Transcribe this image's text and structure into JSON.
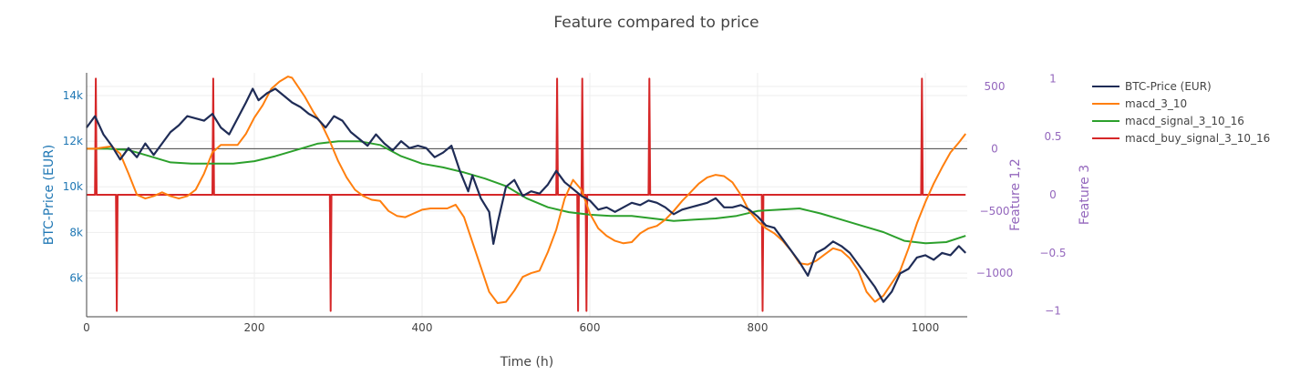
{
  "chart_data": {
    "type": "line",
    "title": "Feature compared to price",
    "xlabel": "Time (h)",
    "ylabel_left": "BTC-Price (EUR)",
    "ylabel_right1": "Feature 1,2",
    "ylabel_right2": "Feature 3",
    "xlim": [
      0,
      1050
    ],
    "ylim_left": [
      4300,
      15000
    ],
    "ylim_right1": [
      -1350,
      610
    ],
    "ylim_right2": [
      -1.05,
      1.05
    ],
    "x_ticks": [
      0,
      200,
      400,
      600,
      800,
      1000
    ],
    "x_tick_labels": [
      "0",
      "200",
      "400",
      "600",
      "800",
      "1000"
    ],
    "y_left_ticks": [
      6000,
      8000,
      10000,
      12000,
      14000
    ],
    "y_left_tick_labels": [
      "6k",
      "8k",
      "10k",
      "12k",
      "14k"
    ],
    "y_right1_ticks": [
      500,
      0,
      -500,
      -1000
    ],
    "y_right1_tick_labels": [
      "500",
      "0",
      "−500",
      "−1000"
    ],
    "y_right2_ticks": [
      1,
      0.5,
      0,
      -0.5,
      -1
    ],
    "y_right2_tick_labels": [
      "1",
      "0.5",
      "0",
      "−0.5",
      "−1"
    ],
    "grid": true,
    "legend_position": "right",
    "colors": {
      "price": "#1f2c56",
      "macd": "#ff7f0e",
      "signal": "#2ca02c",
      "buy": "#d62728",
      "left_axis": "#1f77b4",
      "right_axis": "#9467bd",
      "grid": "#eeeeee",
      "zero": "#444444"
    },
    "series": [
      {
        "name": "BTC-Price (EUR)",
        "axis": "left",
        "x": [
          0,
          10,
          20,
          30,
          40,
          50,
          60,
          70,
          80,
          90,
          100,
          110,
          120,
          130,
          140,
          150,
          160,
          170,
          180,
          190,
          198,
          205,
          215,
          225,
          235,
          245,
          255,
          265,
          275,
          285,
          295,
          305,
          315,
          325,
          335,
          345,
          355,
          365,
          375,
          385,
          395,
          405,
          415,
          425,
          435,
          445,
          455,
          460,
          470,
          480,
          485,
          490,
          495,
          500,
          510,
          520,
          530,
          540,
          550,
          560,
          570,
          580,
          590,
          600,
          610,
          620,
          630,
          640,
          650,
          660,
          670,
          680,
          690,
          700,
          710,
          720,
          730,
          740,
          750,
          760,
          770,
          780,
          790,
          800,
          810,
          820,
          830,
          840,
          850,
          860,
          870,
          880,
          890,
          900,
          910,
          920,
          930,
          940,
          950,
          960,
          970,
          980,
          990,
          1000,
          1010,
          1020,
          1030,
          1040,
          1048
        ],
        "values": [
          12600,
          13100,
          12300,
          11800,
          11200,
          11700,
          11300,
          11900,
          11400,
          11900,
          12400,
          12700,
          13100,
          13000,
          12900,
          13200,
          12600,
          12300,
          13000,
          13700,
          14300,
          13800,
          14100,
          14300,
          14000,
          13700,
          13500,
          13200,
          13000,
          12600,
          13100,
          12900,
          12400,
          12100,
          11800,
          12300,
          11900,
          11600,
          12000,
          11700,
          11800,
          11700,
          11300,
          11500,
          11800,
          10700,
          9800,
          10500,
          9500,
          8900,
          7500,
          8400,
          9200,
          10000,
          10300,
          9600,
          9800,
          9700,
          10100,
          10700,
          10200,
          9900,
          9600,
          9400,
          9000,
          9100,
          8900,
          9100,
          9300,
          9200,
          9400,
          9300,
          9100,
          8800,
          9000,
          9100,
          9200,
          9300,
          9500,
          9100,
          9100,
          9200,
          9000,
          8700,
          8300,
          8200,
          7700,
          7200,
          6700,
          6100,
          7100,
          7300,
          7600,
          7400,
          7100,
          6600,
          6100,
          5600,
          4950,
          5400,
          6200,
          6400,
          6900,
          7000,
          6800,
          7100,
          7000,
          7400,
          7100
        ]
      },
      {
        "name": "macd_3_10",
        "axis": "right1",
        "x": [
          0,
          10,
          20,
          30,
          40,
          50,
          60,
          70,
          80,
          90,
          100,
          110,
          120,
          130,
          140,
          150,
          160,
          170,
          180,
          190,
          200,
          210,
          220,
          230,
          240,
          245,
          250,
          260,
          270,
          280,
          290,
          300,
          310,
          320,
          330,
          340,
          350,
          360,
          370,
          380,
          390,
          400,
          410,
          420,
          430,
          440,
          450,
          460,
          470,
          480,
          490,
          500,
          510,
          520,
          530,
          540,
          550,
          560,
          570,
          580,
          590,
          600,
          610,
          620,
          630,
          640,
          650,
          660,
          670,
          680,
          690,
          700,
          710,
          720,
          730,
          740,
          750,
          760,
          770,
          780,
          790,
          800,
          810,
          820,
          830,
          840,
          850,
          860,
          870,
          880,
          890,
          900,
          910,
          920,
          930,
          940,
          950,
          960,
          970,
          980,
          990,
          1000,
          1010,
          1020,
          1030,
          1040,
          1048
        ],
        "values": [
          0,
          0,
          10,
          20,
          -40,
          -200,
          -370,
          -400,
          -380,
          -350,
          -380,
          -400,
          -380,
          -330,
          -200,
          -30,
          30,
          30,
          30,
          120,
          250,
          350,
          480,
          540,
          580,
          570,
          520,
          420,
          300,
          200,
          60,
          -100,
          -230,
          -330,
          -380,
          -410,
          -420,
          -500,
          -540,
          -550,
          -520,
          -490,
          -480,
          -480,
          -480,
          -450,
          -550,
          -750,
          -950,
          -1150,
          -1240,
          -1230,
          -1140,
          -1030,
          -1000,
          -980,
          -830,
          -650,
          -400,
          -250,
          -330,
          -520,
          -640,
          -700,
          -740,
          -760,
          -750,
          -680,
          -640,
          -620,
          -570,
          -500,
          -420,
          -350,
          -280,
          -230,
          -210,
          -220,
          -270,
          -370,
          -500,
          -580,
          -640,
          -680,
          -740,
          -820,
          -920,
          -930,
          -900,
          -850,
          -800,
          -820,
          -880,
          -980,
          -1150,
          -1230,
          -1180,
          -1080,
          -980,
          -800,
          -600,
          -430,
          -280,
          -150,
          -30,
          50,
          120
        ]
      },
      {
        "name": "macd_signal_3_10_16",
        "axis": "right1",
        "x": [
          0,
          25,
          50,
          75,
          100,
          125,
          150,
          175,
          200,
          225,
          250,
          275,
          300,
          325,
          350,
          375,
          400,
          425,
          450,
          475,
          500,
          525,
          550,
          575,
          600,
          625,
          650,
          675,
          700,
          725,
          750,
          775,
          800,
          825,
          850,
          875,
          900,
          925,
          950,
          975,
          1000,
          1025,
          1048
        ],
        "values": [
          0,
          0,
          -10,
          -60,
          -110,
          -120,
          -120,
          -120,
          -100,
          -60,
          -10,
          40,
          60,
          60,
          30,
          -60,
          -120,
          -150,
          -190,
          -240,
          -300,
          -400,
          -470,
          -510,
          -530,
          -540,
          -540,
          -560,
          -580,
          -570,
          -560,
          -540,
          -500,
          -490,
          -480,
          -520,
          -570,
          -620,
          -670,
          -740,
          -760,
          -750,
          -700
        ]
      },
      {
        "name": "macd_buy_signal_3_10_16",
        "axis": "right2",
        "x": [
          0,
          10,
          11,
          12,
          35,
          36,
          37,
          150,
          151,
          152,
          290,
          291,
          292,
          560,
          561,
          562,
          585,
          586,
          587,
          590,
          591,
          592,
          595,
          596,
          597,
          670,
          671,
          672,
          805,
          806,
          807,
          995,
          996,
          997,
          1048
        ],
        "values": [
          0,
          0,
          1,
          0,
          0,
          -1,
          0,
          0,
          1,
          0,
          0,
          -1,
          0,
          0,
          1,
          0,
          0,
          -1,
          0,
          0,
          1,
          0,
          0,
          -1,
          0,
          0,
          1,
          0,
          0,
          -1,
          0,
          0,
          1,
          0,
          0
        ]
      }
    ]
  }
}
